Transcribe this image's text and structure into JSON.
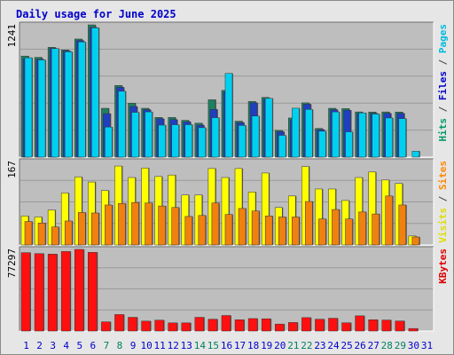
{
  "chart_data": {
    "type": "bar",
    "title": "Daily usage for June 2025",
    "x": [
      "1",
      "2",
      "3",
      "4",
      "5",
      "6",
      "7",
      "8",
      "9",
      "10",
      "11",
      "12",
      "13",
      "14",
      "15",
      "16",
      "17",
      "18",
      "19",
      "20",
      "21",
      "22",
      "23",
      "24",
      "25",
      "26",
      "27",
      "28",
      "29",
      "30",
      "31"
    ],
    "weekend_days": [
      "7",
      "8",
      "14",
      "15",
      "21",
      "22",
      "28",
      "29"
    ],
    "panels": [
      {
        "name": "pages-files-hits",
        "ymax_label": "1241",
        "ylim": [
          0,
          1241
        ],
        "legend": [
          {
            "text": "Pages",
            "color": "#00bbdd"
          },
          {
            "text": " / ",
            "color": "#444444"
          },
          {
            "text": "Files",
            "color": "#0000cc"
          },
          {
            "text": " / ",
            "color": "#444444"
          },
          {
            "text": "Hits",
            "color": "#009966"
          }
        ],
        "series": [
          {
            "name": "Hits",
            "color": "#1f8060",
            "values": [
              948,
              936,
              1030,
              1006,
              1108,
              1241,
              458,
              672,
              506,
              458,
              372,
              372,
              345,
              318,
              538,
              626,
              337,
              522,
              560,
              250,
              367,
              509,
              269,
              458,
              455,
              424,
              423,
              424,
              423,
              0,
              0
            ]
          },
          {
            "name": "Files",
            "color": "#1f3ec0",
            "values": [
              924,
              918,
              1020,
              996,
              1094,
              1218,
              408,
              655,
              475,
              445,
              360,
              352,
              330,
              300,
              448,
              614,
              324,
              509,
              545,
              238,
              350,
              496,
              258,
              445,
              440,
              410,
              410,
              411,
              410,
              0,
              0
            ]
          },
          {
            "name": "Pages",
            "color": "#00d0f0",
            "values": [
              932,
              912,
              1018,
              988,
              1080,
              1213,
              282,
              618,
              420,
              424,
              300,
              304,
              304,
              276,
              370,
              785,
              297,
              385,
              551,
              204,
              459,
              447,
              243,
              424,
              237,
              415,
              404,
              367,
              361,
              55,
              0
            ]
          }
        ]
      },
      {
        "name": "visits-sites",
        "ymax_label": "167",
        "ylim": [
          0,
          167
        ],
        "legend": [
          {
            "text": "Sites",
            "color": "#ff8800"
          },
          {
            "text": " / ",
            "color": "#444444"
          },
          {
            "text": "Visits",
            "color": "#dddd00"
          }
        ],
        "series": [
          {
            "name": "Visits",
            "color": "#ffff00",
            "values": [
              58,
              56,
              70,
              104,
              136,
              126,
              109,
              158,
              135,
              154,
              137,
              140,
              100,
              100,
              153,
              135,
              153,
              106,
              144,
              75,
              98,
              157,
              112,
              112,
              89,
              135,
              146,
              130,
              123,
              18,
              0
            ]
          },
          {
            "name": "Sites",
            "color": "#f08010",
            "values": [
              47,
              44,
              36,
              48,
              65,
              64,
              80,
              83,
              85,
              84,
              78,
              75,
              57,
              59,
              84,
              61,
              73,
              68,
              58,
              56,
              56,
              87,
              52,
              71,
              52,
              66,
              62,
              98,
              80,
              16,
              0
            ]
          }
        ]
      },
      {
        "name": "kbytes",
        "ymax_label": "77297",
        "ylim": [
          0,
          77297
        ],
        "legend": [
          {
            "text": "KBytes",
            "color": "#dd0000"
          }
        ],
        "series": [
          {
            "name": "KBytes",
            "color": "#ff1010",
            "values": [
              74200,
              73300,
              72800,
              75300,
              77297,
              74500,
              8700,
              15600,
              13000,
              9400,
              10300,
              7700,
              7700,
              13000,
              11200,
              14700,
              10700,
              11800,
              11600,
              6600,
              8100,
              12700,
              11200,
              12100,
              7800,
              14400,
              10700,
              10400,
              9500,
              2400,
              0
            ]
          }
        ]
      }
    ],
    "grid": true,
    "legend_placement": "right, vertical",
    "colors": {
      "plot_bg": "#bebebe",
      "grid": "#9a9a9a",
      "weekday_label": "#0000cc",
      "weekend_label": "#008060",
      "bar_shadow": "#5a5a5a"
    }
  }
}
